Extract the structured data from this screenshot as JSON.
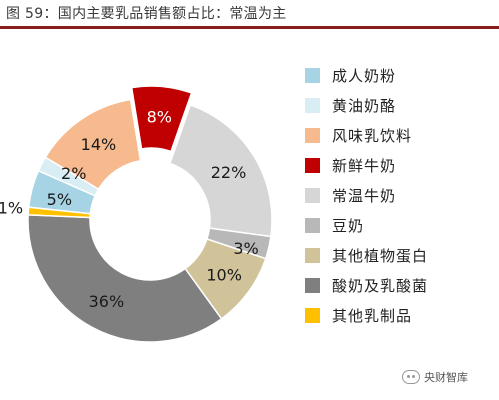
{
  "title": "图 59：国内主要乳品销售额占比：常温为主",
  "watermark": "央财智库",
  "chart_data": {
    "type": "pie",
    "donut": true,
    "legend_position": "right",
    "categories": [
      "成人奶粉",
      "黄油奶酪",
      "风味乳饮料",
      "新鲜牛奶",
      "常温牛奶",
      "豆奶",
      "其他植物蛋白",
      "酸奶及乳酸菌",
      "其他乳制品"
    ],
    "values": [
      5,
      2,
      14,
      8,
      22,
      3,
      10,
      36,
      1
    ],
    "labels": [
      "5%",
      "2%",
      "14%",
      "8%",
      "22%",
      "3%",
      "10%",
      "36%",
      "1%"
    ],
    "colors": [
      "#A6D4E4",
      "#D8EDF4",
      "#F7B98E",
      "#C00000",
      "#D6D6D6",
      "#B8B8B8",
      "#D0C39A",
      "#7F7F7F",
      "#FFC000"
    ],
    "exploded": [
      "新鲜牛奶"
    ]
  }
}
